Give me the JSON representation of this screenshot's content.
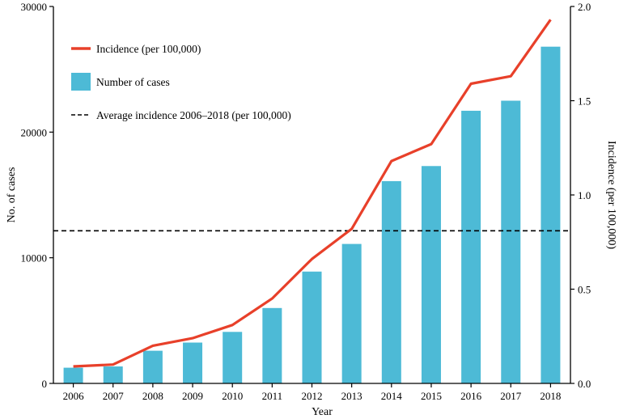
{
  "chart_data": {
    "type": "bar+line",
    "title": "",
    "xlabel": "Year",
    "ylabel_left": "No. of cases",
    "ylabel_right": "Incidence (per 100,000)",
    "categories": [
      "2006",
      "2007",
      "2008",
      "2009",
      "2010",
      "2011",
      "2012",
      "2013",
      "2014",
      "2015",
      "2016",
      "2017",
      "2018"
    ],
    "ylim_left": [
      0,
      30000
    ],
    "ylim_right": [
      0,
      2.0
    ],
    "yticks_left": [
      "0",
      "10000",
      "20000",
      "30000"
    ],
    "yticks_right": [
      "0.0",
      "0.5",
      "1.0",
      "1.5",
      "2.0"
    ],
    "grid": false,
    "legend_position": "top-left",
    "series": [
      {
        "name": "Number of cases",
        "kind": "bar",
        "axis": "left",
        "color": "#4dbad6",
        "values": [
          1250,
          1350,
          2600,
          3250,
          4100,
          6000,
          8900,
          11100,
          16100,
          17300,
          21700,
          22500,
          26800
        ]
      },
      {
        "name": "Incidence (per 100,000)",
        "kind": "line",
        "axis": "right",
        "color": "#e8402a",
        "values": [
          0.09,
          0.1,
          0.2,
          0.24,
          0.31,
          0.45,
          0.66,
          0.82,
          1.18,
          1.27,
          1.59,
          1.63,
          1.93
        ]
      },
      {
        "name": "Average incidence 2006–2018 (per 100,000)",
        "kind": "hline",
        "axis": "right",
        "color": "#000000",
        "value": 0.81
      }
    ],
    "legend": [
      {
        "label": "Incidence (per 100,000)",
        "kind": "line"
      },
      {
        "label": "Number of cases",
        "kind": "bar"
      },
      {
        "label": "Average incidence 2006–2018 (per 100,000)",
        "kind": "dashed"
      }
    ]
  }
}
